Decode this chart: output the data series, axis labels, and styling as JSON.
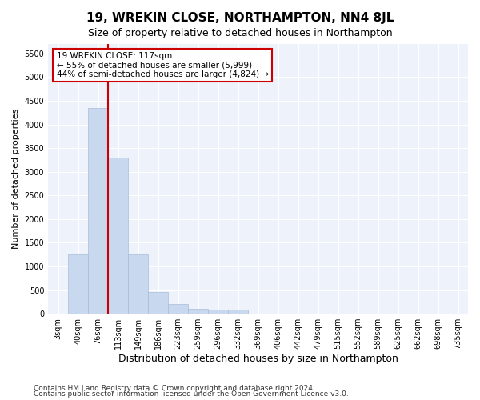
{
  "title": "19, WREKIN CLOSE, NORTHAMPTON, NN4 8JL",
  "subtitle": "Size of property relative to detached houses in Northampton",
  "xlabel": "Distribution of detached houses by size in Northampton",
  "ylabel": "Number of detached properties",
  "categories": [
    "3sqm",
    "40sqm",
    "76sqm",
    "113sqm",
    "149sqm",
    "186sqm",
    "223sqm",
    "259sqm",
    "296sqm",
    "332sqm",
    "369sqm",
    "406sqm",
    "442sqm",
    "479sqm",
    "515sqm",
    "552sqm",
    "589sqm",
    "625sqm",
    "662sqm",
    "698sqm",
    "735sqm"
  ],
  "values": [
    0,
    1250,
    4350,
    3300,
    1250,
    450,
    200,
    100,
    80,
    80,
    0,
    0,
    0,
    0,
    0,
    0,
    0,
    0,
    0,
    0,
    0
  ],
  "bar_color": "#c8d8ee",
  "bar_edgecolor": "#a8bcd8",
  "vline_index": 2.5,
  "vline_color": "#cc0000",
  "annotation_text": "19 WREKIN CLOSE: 117sqm\n← 55% of detached houses are smaller (5,999)\n44% of semi-detached houses are larger (4,824) →",
  "ylim": [
    0,
    5700
  ],
  "yticks": [
    0,
    500,
    1000,
    1500,
    2000,
    2500,
    3000,
    3500,
    4000,
    4500,
    5000,
    5500
  ],
  "footnote1": "Contains HM Land Registry data © Crown copyright and database right 2024.",
  "footnote2": "Contains public sector information licensed under the Open Government Licence v3.0.",
  "title_fontsize": 11,
  "subtitle_fontsize": 9,
  "xlabel_fontsize": 9,
  "ylabel_fontsize": 8,
  "tick_fontsize": 7,
  "annotation_fontsize": 7.5,
  "footnote_fontsize": 6.5,
  "bg_color": "#eef2fa"
}
